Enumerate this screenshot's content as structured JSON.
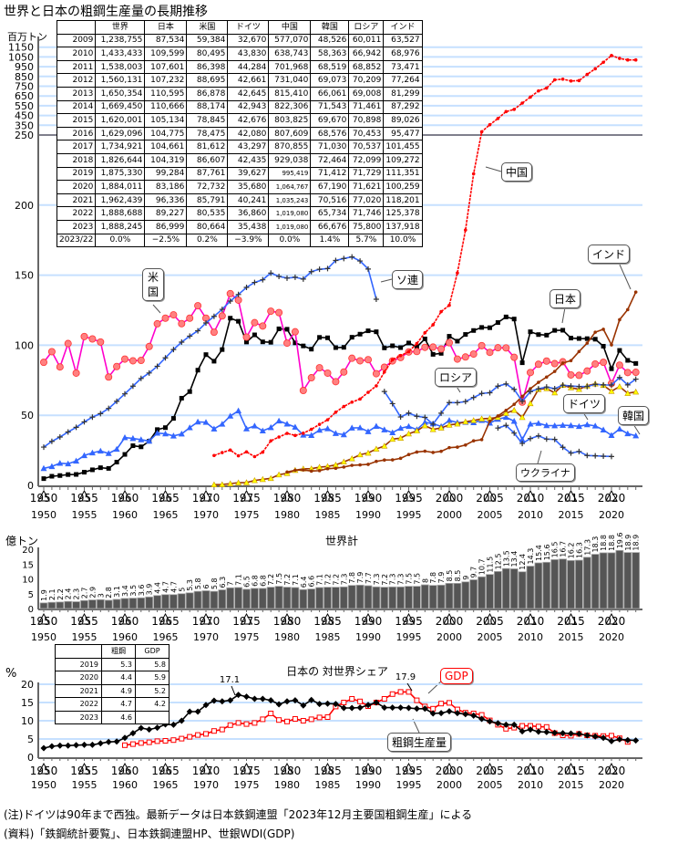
{
  "title": "世界と日本の粗鋼生産量の長期推移",
  "colors": {
    "japan": "#000000",
    "us": "#ff00cc",
    "us_marker": "#ff8080",
    "germany": "#3366ff",
    "china": "#ff0000",
    "india": "#993300",
    "korea": "#993300",
    "korea_marker": "#ffff00",
    "ussr": "#3366ff",
    "grid": "#c6e0ff",
    "gdp": "#ff0000"
  },
  "table": {
    "headers": [
      "",
      "世界",
      "日本",
      "米国",
      "ドイツ",
      "中国",
      "韓国",
      "ロシア",
      "インド"
    ],
    "rows": [
      [
        "2009",
        "1,238,755",
        "87,534",
        "59,384",
        "32,670",
        "577,070",
        "48,526",
        "60,011",
        "63,527"
      ],
      [
        "2010",
        "1,433,433",
        "109,599",
        "80,495",
        "43,830",
        "638,743",
        "58,363",
        "66,942",
        "68,976"
      ],
      [
        "2011",
        "1,538,003",
        "107,601",
        "86,398",
        "44,284",
        "701,968",
        "68,519",
        "68,852",
        "73,471"
      ],
      [
        "2012",
        "1,560,131",
        "107,232",
        "88,695",
        "42,661",
        "731,040",
        "69,073",
        "70,209",
        "77,264"
      ],
      [
        "2013",
        "1,650,354",
        "110,595",
        "86,878",
        "42,645",
        "815,410",
        "66,061",
        "69,008",
        "81,299"
      ],
      [
        "2014",
        "1,669,450",
        "110,666",
        "88,174",
        "42,943",
        "822,306",
        "71,543",
        "71,461",
        "87,292"
      ],
      [
        "2015",
        "1,620,001",
        "105,134",
        "78,845",
        "42,676",
        "803,825",
        "69,670",
        "70,898",
        "89,026"
      ],
      [
        "2016",
        "1,629,096",
        "104,775",
        "78,475",
        "42,080",
        "807,609",
        "68,576",
        "70,453",
        "95,477"
      ],
      [
        "2017",
        "1,734,921",
        "104,661",
        "81,612",
        "43,297",
        "870,855",
        "71,030",
        "70,537",
        "101,455"
      ],
      [
        "2018",
        "1,826,644",
        "104,319",
        "86,607",
        "42,435",
        "929,038",
        "72,464",
        "72,099",
        "109,272"
      ],
      [
        "2019",
        "1,875,330",
        "99,284",
        "87,761",
        "39,627",
        "995,419",
        "71,412",
        "71,729",
        "111,351"
      ],
      [
        "2020",
        "1,884,011",
        "83,186",
        "72,732",
        "35,680",
        "1,064,767",
        "67,190",
        "71,621",
        "100,259"
      ],
      [
        "2021",
        "1,962,439",
        "96,336",
        "85,791",
        "40,241",
        "1,035,243",
        "70,516",
        "77,020",
        "118,201"
      ],
      [
        "2022",
        "1,888,688",
        "89,227",
        "80,535",
        "36,860",
        "1,019,080",
        "65,734",
        "71,746",
        "125,378"
      ],
      [
        "2023",
        "1,888,245",
        "86,999",
        "80,664",
        "35,438",
        "1,019,080",
        "66,676",
        "75,800",
        "137,918"
      ],
      [
        "2023/22",
        "0.0%",
        "−2.5%",
        "0.2%",
        "−3.9%",
        "0.0%",
        "1.4%",
        "5.7%",
        "10.0%"
      ]
    ]
  },
  "share_table": {
    "headers": [
      "",
      "粗鋼",
      "GDP"
    ],
    "rows": [
      [
        "2019",
        "5.3",
        "5.8"
      ],
      [
        "2020",
        "4.4",
        "5.9"
      ],
      [
        "2021",
        "4.9",
        "5.2"
      ],
      [
        "2022",
        "4.7",
        "4.2"
      ],
      [
        "2023",
        "4.6",
        ""
      ]
    ]
  },
  "callouts": {
    "us": "米国",
    "ussr": "ソ連",
    "china": "中国",
    "india": "インド",
    "japan": "日本",
    "russia": "ロシア",
    "germany": "ドイツ",
    "korea": "韓国",
    "ukraine": "ウクライナ",
    "gdp": "GDP",
    "steel": "粗鋼生産量"
  },
  "notes": [
    "(注)ドイツは90年まで西独。最新データは日本鉄鋼連盟「2023年12月主要国粗鋼生産」による",
    "(資料)「鉄鋼統計要覧」、日本鉄鋼連盟HP、世銀WDI(GDP)"
  ],
  "chart_data": [
    {
      "type": "line",
      "ylabel": "百万トン",
      "yticks": [
        "1150",
        "1050",
        "950",
        "850",
        "750",
        "650",
        "550",
        "450",
        "350",
        "250",
        "200",
        "150",
        "100",
        "50",
        "0"
      ],
      "xticks": [
        "1950",
        "1955",
        "1960",
        "1965",
        "1970",
        "1975",
        "1980",
        "1985",
        "1990",
        "1995",
        "2000",
        "2005",
        "2010",
        "2015",
        "2020"
      ],
      "scale": "broken: linear 0-250, compressed 250-1150",
      "series": [
        {
          "key": "japan",
          "start": 1950,
          "values": [
            4.8,
            6.5,
            7.0,
            7.7,
            7.8,
            9.4,
            11.1,
            12.6,
            12.1,
            16.6,
            22.1,
            28.3,
            27.5,
            31.5,
            39.8,
            41.2,
            47.8,
            62.2,
            66.9,
            82.2,
            93.3,
            88.6,
            96.9,
            119.3,
            117.1,
            102.3,
            107.4,
            102.4,
            102.1,
            111.7,
            111.4,
            101.7,
            99.5,
            97.2,
            105.6,
            105.3,
            98.3,
            98.5,
            105.7,
            107.9,
            110.3,
            109.6,
            98.1,
            99.6,
            98.3,
            101.6,
            98.8,
            104.5,
            93.5,
            94.2,
            106.4,
            102.9,
            107.7,
            110.5,
            112.7,
            112.5,
            116.2,
            120.2,
            118.7,
            87.5,
            109.6,
            107.6,
            107.2,
            110.6,
            110.7,
            105.1,
            104.8,
            104.7,
            104.3,
            99.3,
            83.2,
            96.3,
            89.2,
            87.0
          ]
        },
        {
          "key": "us",
          "start": 1950,
          "values": [
            87.8,
            95.4,
            84.5,
            101.2,
            80.1,
            106.2,
            104.5,
            102.3,
            77.3,
            84.8,
            90.1,
            88.9,
            89.2,
            99.1,
            115.3,
            119.3,
            121.7,
            115.4,
            119.3,
            128.2,
            119.3,
            109.3,
            120.9,
            136.8,
            132.2,
            105.8,
            116.1,
            113.7,
            124.3,
            123.3,
            101.5,
            109.6,
            67.7,
            76.8,
            83.9,
            80.1,
            74.0,
            80.9,
            90.7,
            88.9,
            89.7,
            79.7,
            84.3,
            88.8,
            91.2,
            95.2,
            95.5,
            98.5,
            98.7,
            97.3,
            101.8,
            90.1,
            91.6,
            93.7,
            99.7,
            94.9,
            98.2,
            98.1,
            91.4,
            59.4,
            80.5,
            86.4,
            88.7,
            86.9,
            88.2,
            78.8,
            78.5,
            81.6,
            86.6,
            87.8,
            72.7,
            85.8,
            80.5,
            80.7
          ]
        },
        {
          "key": "germany",
          "start": 1950,
          "values": [
            12.1,
            13.5,
            15.8,
            15.4,
            17.4,
            21.3,
            23.2,
            24.5,
            22.8,
            25.8,
            34.1,
            33.5,
            32.6,
            31.6,
            37.3,
            36.8,
            35.3,
            36.7,
            41.2,
            45.3,
            45.0,
            40.3,
            43.7,
            49.5,
            53.2,
            40.4,
            42.4,
            38.9,
            41.3,
            46.0,
            43.8,
            41.6,
            35.9,
            35.7,
            39.4,
            40.5,
            37.1,
            36.2,
            41.0,
            41.1,
            38.4,
            42.2,
            39.7,
            37.6,
            40.8,
            42.1,
            39.8,
            45.0,
            44.0,
            42.1,
            46.4,
            44.8,
            45.0,
            44.8,
            46.4,
            44.5,
            47.2,
            48.6,
            45.8,
            32.7,
            43.8,
            44.3,
            42.7,
            42.6,
            42.9,
            42.7,
            42.1,
            43.3,
            42.4,
            39.6,
            35.7,
            40.2,
            36.9,
            35.4
          ]
        },
        {
          "key": "china",
          "start": 1971,
          "values": [
            21.3,
            23.4,
            25.2,
            21.1,
            23.9,
            20.5,
            23.7,
            31.8,
            34.5,
            37.1,
            35.6,
            37.2,
            40.0,
            43.5,
            46.8,
            52.2,
            56.3,
            59.4,
            61.6,
            66.4,
            71.0,
            80.9,
            89.6,
            92.6,
            95.4,
            101.2,
            108.9,
            114.6,
            124.0,
            128.5,
            151.6,
            182.2,
            222.3,
            282.9,
            355.8,
            419.1,
            489.7,
            512.3,
            577.1,
            638.7,
            702.0,
            731.0,
            815.4,
            822.3,
            803.8,
            807.6,
            870.9,
            929.0,
            995.4,
            1064.8,
            1035.2,
            1019.1,
            1019.1
          ]
        },
        {
          "key": "korea",
          "start": 1971,
          "values": [
            0.5,
            0.6,
            1.2,
            1.9,
            2.0,
            3.5,
            4.3,
            5.0,
            7.6,
            8.6,
            10.8,
            11.8,
            11.9,
            13.0,
            13.5,
            14.6,
            16.8,
            19.1,
            21.9,
            23.1,
            26.0,
            28.1,
            33.0,
            33.7,
            36.8,
            38.9,
            42.6,
            39.9,
            41.0,
            43.1,
            43.9,
            45.4,
            46.3,
            47.5,
            47.8,
            48.5,
            51.5,
            53.6,
            48.5,
            58.4,
            68.5,
            69.1,
            66.1,
            71.5,
            69.7,
            68.6,
            71.0,
            72.5,
            71.4,
            67.2,
            70.5,
            65.7,
            66.7
          ]
        },
        {
          "key": "india",
          "start": 1980,
          "values": [
            9.5,
            10.8,
            11.0,
            10.2,
            10.5,
            11.9,
            12.2,
            13.1,
            14.3,
            14.6,
            15.0,
            17.1,
            18.1,
            18.2,
            19.3,
            22.0,
            23.8,
            24.4,
            23.5,
            24.3,
            26.9,
            27.3,
            28.8,
            31.8,
            32.6,
            45.8,
            49.5,
            53.5,
            57.8,
            63.5,
            69.0,
            73.5,
            77.3,
            81.3,
            87.3,
            89.0,
            95.5,
            101.5,
            109.3,
            111.4,
            100.3,
            118.2,
            125.4,
            137.9
          ]
        },
        {
          "key": "ussr",
          "start": 1950,
          "values": [
            27.3,
            31.4,
            34.5,
            38.1,
            41.4,
            45.3,
            48.7,
            51.2,
            54.9,
            60.0,
            65.3,
            70.8,
            76.3,
            80.2,
            85.0,
            91.0,
            96.9,
            102.2,
            106.5,
            110.3,
            115.9,
            120.6,
            125.6,
            131.5,
            136.2,
            141.3,
            144.8,
            146.7,
            151.5,
            149.1,
            147.9,
            148.5,
            147.2,
            152.5,
            154.2,
            154.7,
            160.5,
            161.9,
            163.0,
            160.1,
            154.4,
            132.8
          ]
        },
        {
          "key": "russia",
          "start": 1992,
          "values": [
            67.0,
            58.3,
            48.8,
            51.6,
            49.3,
            48.5,
            43.7,
            51.5,
            59.1,
            59.0,
            59.8,
            62.7,
            65.6,
            66.1,
            70.8,
            72.4,
            68.5,
            60.0,
            66.9,
            68.9,
            70.2,
            69.0,
            71.5,
            70.9,
            70.5,
            70.5,
            72.1,
            71.7,
            71.6,
            77.0,
            71.7,
            75.8
          ]
        },
        {
          "key": "ukraine",
          "start": 2006,
          "values": [
            40.9,
            42.8,
            37.3,
            29.9,
            33.4,
            35.3,
            33.0,
            32.8,
            27.2,
            23.0,
            24.2,
            21.3,
            21.1,
            20.8,
            20.6
          ]
        }
      ]
    },
    {
      "type": "bar",
      "title": "世界計",
      "ylabel": "億トン",
      "yticks": [
        "0",
        "5",
        "10",
        "15",
        "20"
      ],
      "ylim": [
        0,
        20
      ],
      "start": 1950,
      "values": [
        1.9,
        2.1,
        2.2,
        2.4,
        2.3,
        2.7,
        2.9,
        3.0,
        2.8,
        3.1,
        3.4,
        3.5,
        3.6,
        3.9,
        4.4,
        4.7,
        4.7,
        5.0,
        5.3,
        5.8,
        6.0,
        5.8,
        6.3,
        7.0,
        7.1,
        6.5,
        6.8,
        6.8,
        7.2,
        7.5,
        7.2,
        7.1,
        6.4,
        6.6,
        7.1,
        7.2,
        7.2,
        7.3,
        7.8,
        7.9,
        7.7,
        7.3,
        7.2,
        7.3,
        7.3,
        7.5,
        7.5,
        8.0,
        7.8,
        7.9,
        8.5,
        8.5,
        9.0,
        9.7,
        10.7,
        11.5,
        12.5,
        13.5,
        13.4,
        12.4,
        14.3,
        15.4,
        15.6,
        16.5,
        16.7,
        16.2,
        16.3,
        17.3,
        18.3,
        18.8,
        18.8,
        19.6,
        18.9,
        18.9
      ]
    },
    {
      "type": "line",
      "title": "日本の 対世界シェア",
      "ylabel": "%",
      "yticks": [
        "0",
        "5",
        "10",
        "15",
        "20"
      ],
      "ylim": [
        0,
        20
      ],
      "annotations": [
        "17.1",
        "17.9"
      ],
      "series": [
        {
          "key": "steel",
          "start": 1950,
          "values": [
            2.5,
            3.0,
            3.2,
            3.2,
            3.3,
            3.4,
            3.4,
            3.8,
            4.2,
            4.3,
            5.3,
            6.6,
            8.0,
            7.6,
            8.1,
            9.0,
            8.9,
            10.0,
            12.5,
            12.5,
            14.3,
            15.5,
            15.3,
            15.6,
            17.1,
            16.6,
            16.0,
            16.0,
            15.6,
            14.5,
            15.3,
            15.6,
            14.2,
            15.7,
            14.6,
            14.7,
            14.6,
            13.5,
            13.5,
            13.6,
            14.3,
            15.0,
            13.6,
            13.6,
            13.6,
            13.5,
            13.3,
            13.3,
            12.0,
            12.1,
            12.6,
            12.1,
            11.8,
            11.4,
            10.5,
            9.8,
            9.3,
            8.9,
            8.9,
            7.1,
            7.6,
            7.0,
            6.9,
            6.7,
            6.6,
            6.5,
            6.4,
            6.0,
            5.7,
            5.3,
            4.4,
            4.9,
            4.7,
            4.6
          ]
        },
        {
          "key": "gdp",
          "start": 1960,
          "values": [
            3.3,
            3.6,
            3.9,
            4.1,
            4.4,
            4.5,
            4.7,
            5.1,
            5.6,
            6.1,
            6.4,
            7.2,
            7.6,
            8.8,
            9.4,
            9.1,
            9.4,
            10.4,
            12.0,
            10.2,
            9.8,
            10.5,
            10.0,
            10.4,
            10.9,
            11.0,
            13.9,
            15.0,
            16.0,
            15.3,
            14.0,
            15.0,
            16.0,
            17.3,
            17.9,
            17.9,
            15.6,
            13.9,
            13.3,
            14.7,
            14.9,
            13.1,
            12.2,
            12.0,
            11.6,
            10.1,
            8.9,
            7.8,
            8.1,
            8.6,
            8.6,
            8.4,
            8.3,
            6.6,
            6.0,
            5.9,
            6.4,
            6.0,
            5.9,
            5.8,
            5.9,
            5.2,
            4.2
          ]
        }
      ]
    }
  ]
}
